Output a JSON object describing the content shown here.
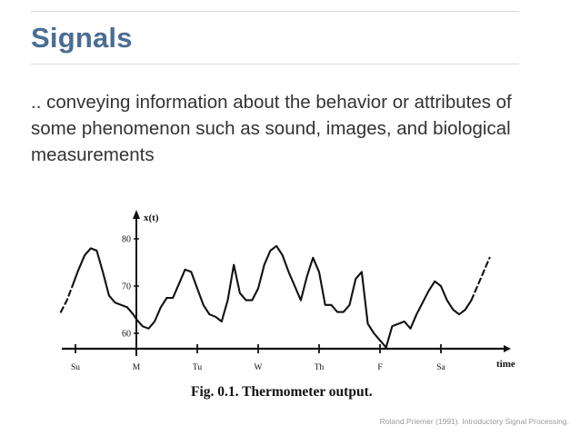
{
  "slide": {
    "title": "Signals",
    "body": ".. conveying information about the behavior or attributes of some phenomenon such as sound, images, and biological measurements",
    "credit": "Roland Priemer (1991). Introductory Signal Processing."
  },
  "chart_data": {
    "type": "line",
    "caption": "Fig. 0.1. Thermometer output.",
    "xlabel": "time",
    "ylabel": "x(t)",
    "categories": [
      "Su",
      "M",
      "Tu",
      "W",
      "Th",
      "F",
      "Sa"
    ],
    "xlim": [
      -0.6,
      7.05
    ],
    "ylim": [
      56.5,
      86
    ],
    "yticks": [
      60,
      70,
      80
    ],
    "grid": false,
    "legend": "none",
    "series": [
      {
        "style": "dashed",
        "x": [
          -0.24,
          -0.14,
          -0.05
        ],
        "y": [
          64.5,
          67,
          70
        ]
      },
      {
        "style": "solid",
        "x": [
          -0.05,
          0.05,
          0.15,
          0.25,
          0.35,
          0.45,
          0.55,
          0.65,
          0.75,
          0.85,
          0.95,
          1.0,
          1.1,
          1.2,
          1.3,
          1.4,
          1.5,
          1.6,
          1.7,
          1.8,
          1.9,
          2.0,
          2.1,
          2.2,
          2.3,
          2.4,
          2.5,
          2.6,
          2.7,
          2.8,
          2.9,
          3.0,
          3.1,
          3.2,
          3.3,
          3.4,
          3.5,
          3.6,
          3.7,
          3.8,
          3.9,
          4.0,
          4.1,
          4.2,
          4.3,
          4.4,
          4.5,
          4.6,
          4.7,
          4.8,
          4.9,
          5.0,
          5.1,
          5.2,
          5.3,
          5.4,
          5.5,
          5.6,
          5.7,
          5.8,
          5.9,
          6.0,
          6.1,
          6.2,
          6.3,
          6.4,
          6.5
        ],
        "y": [
          70,
          73.5,
          76.5,
          78,
          77.5,
          73,
          68,
          66.5,
          66,
          65.5,
          64,
          63,
          61.5,
          61,
          62.5,
          65.5,
          67.5,
          67.5,
          70.5,
          73.5,
          73,
          69.5,
          66,
          64,
          63.5,
          62.5,
          67,
          74.5,
          68.5,
          67,
          67,
          69.5,
          74.5,
          77.5,
          78.5,
          76.5,
          73,
          70,
          67,
          72,
          76,
          73,
          66,
          66,
          64.5,
          64.5,
          66,
          71.5,
          73,
          62,
          60,
          58.5,
          57,
          61.5,
          62,
          62.5,
          61,
          64,
          66.5,
          69,
          71,
          70,
          67,
          65,
          64,
          65,
          67
        ]
      },
      {
        "style": "dashed",
        "x": [
          6.5,
          6.6,
          6.7,
          6.8
        ],
        "y": [
          67,
          70,
          73,
          76
        ]
      }
    ]
  }
}
